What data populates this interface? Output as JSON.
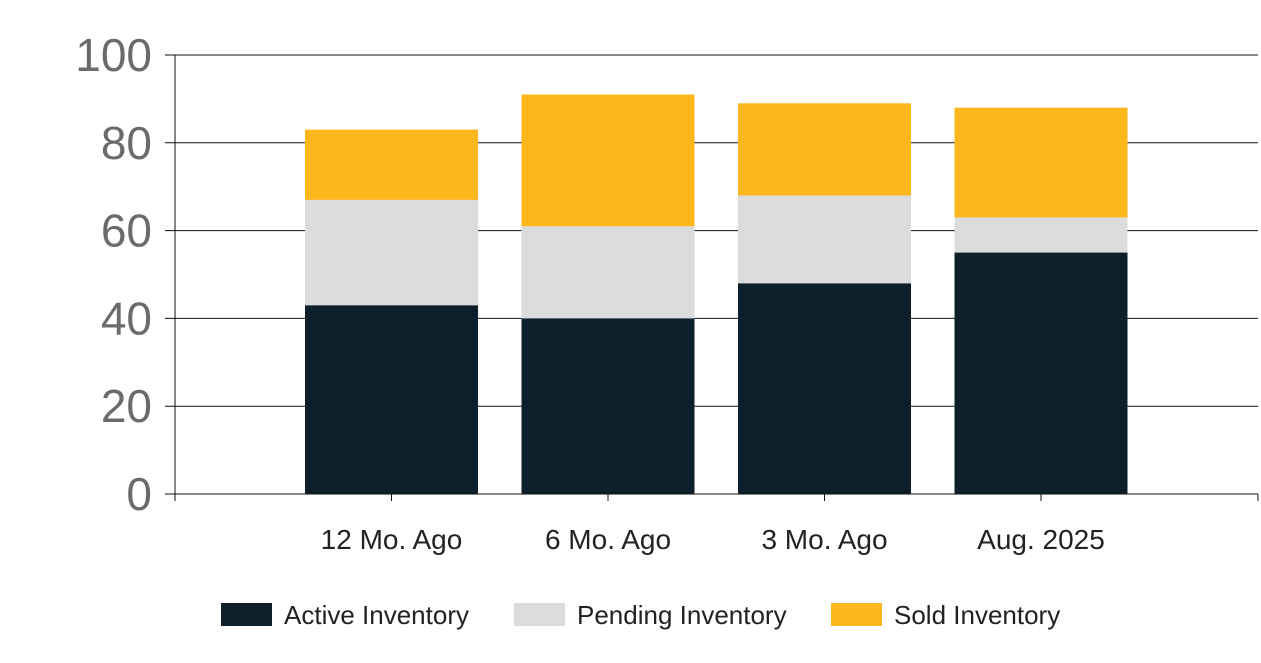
{
  "chart_data": {
    "type": "bar",
    "stacked": true,
    "categories": [
      "12 Mo. Ago",
      "6 Mo. Ago",
      "3 Mo. Ago",
      "Aug. 2025"
    ],
    "series": [
      {
        "name": "Active Inventory",
        "values": [
          43,
          40,
          48,
          55
        ],
        "color": "#0d1f2b"
      },
      {
        "name": "Pending Inventory",
        "values": [
          24,
          21,
          20,
          8
        ],
        "color": "#dcdcdc"
      },
      {
        "name": "Sold Inventory",
        "values": [
          16,
          30,
          21,
          25
        ],
        "color": "#fbb71b"
      }
    ],
    "ylim": [
      0,
      100
    ],
    "yticks": [
      "0",
      "20",
      "40",
      "60",
      "80",
      "100"
    ],
    "grid": true,
    "legend_position": "bottom"
  }
}
